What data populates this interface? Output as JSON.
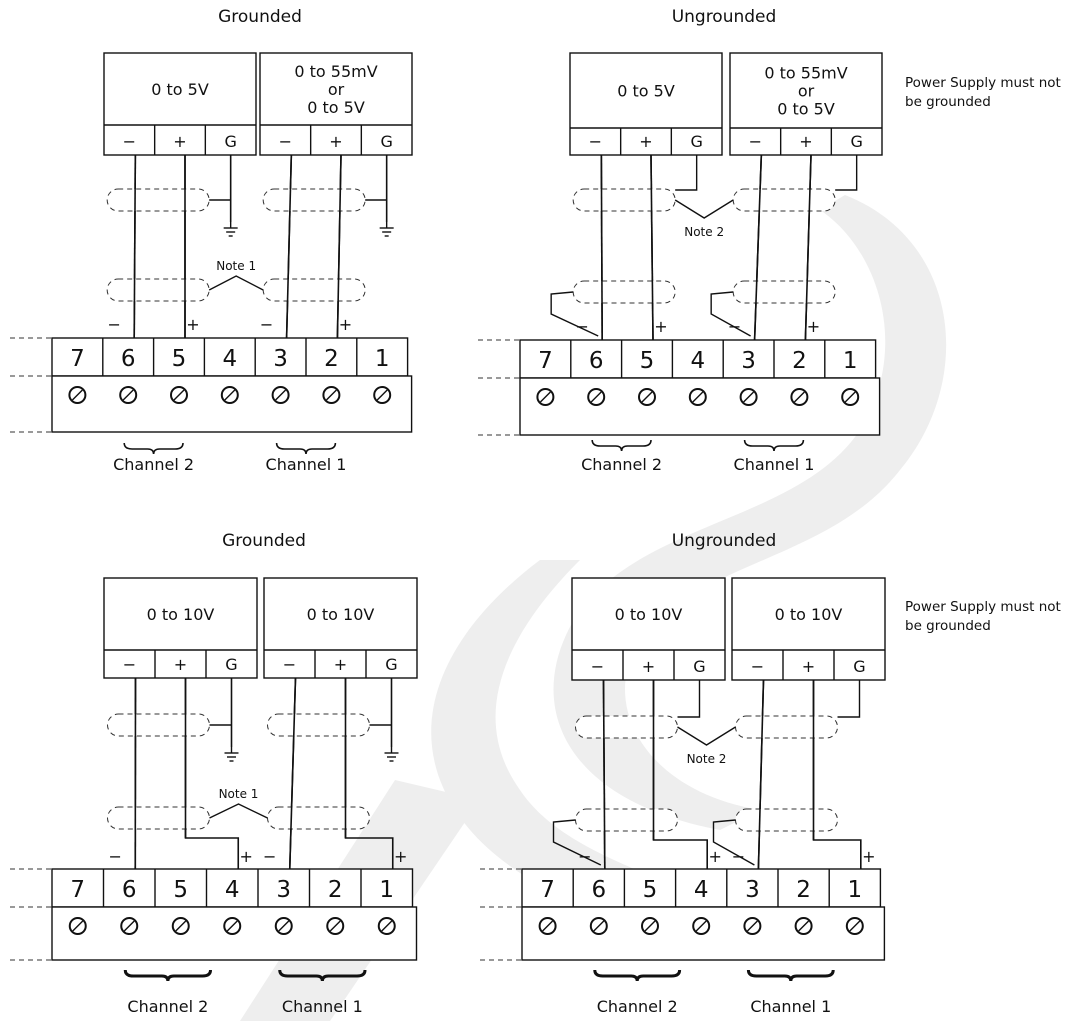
{
  "colors": {
    "ink": "#111111",
    "watermark": "#eeeeee"
  },
  "diagrams": [
    {
      "title": "Grounded",
      "left_box": [
        "0 to 5V"
      ],
      "right_box": [
        "0 to 55mV",
        "or",
        "0 to 5V"
      ],
      "box_terms": [
        "−",
        "+",
        "G"
      ],
      "note": "Note 1",
      "polarity": [
        "−",
        "+",
        "−",
        "+"
      ],
      "terminals": [
        "7",
        "6",
        "5",
        "4",
        "3",
        "2",
        "1"
      ],
      "channels": [
        "Channel 2",
        "Channel 1"
      ]
    },
    {
      "title": "Ungrounded",
      "left_box": [
        "0 to 5V"
      ],
      "right_box": [
        "0 to 55mV",
        "or",
        "0 to 5V"
      ],
      "box_terms": [
        "−",
        "+",
        "G"
      ],
      "note": "Note 2",
      "polarity": [
        "−",
        "+",
        "−",
        "+"
      ],
      "terminals": [
        "7",
        "6",
        "5",
        "4",
        "3",
        "2",
        "1"
      ],
      "channels": [
        "Channel 2",
        "Channel 1"
      ],
      "side_note": [
        "Power Supply must not",
        "be grounded"
      ]
    },
    {
      "title": "Grounded",
      "left_box": [
        "0 to 10V"
      ],
      "right_box": [
        "0 to 10V"
      ],
      "box_terms": [
        "−",
        "+",
        "G"
      ],
      "note": "Note 1",
      "polarity": [
        "−",
        "+",
        "−",
        "+"
      ],
      "terminals": [
        "7",
        "6",
        "5",
        "4",
        "3",
        "2",
        "1"
      ],
      "channels": [
        "Channel 2",
        "Channel 1"
      ]
    },
    {
      "title": "Ungrounded",
      "left_box": [
        "0 to 10V"
      ],
      "right_box": [
        "0 to 10V"
      ],
      "box_terms": [
        "−",
        "+",
        "G"
      ],
      "note": "Note 2",
      "polarity": [
        "−",
        "+",
        "−",
        "+"
      ],
      "terminals": [
        "7",
        "6",
        "5",
        "4",
        "3",
        "2",
        "1"
      ],
      "channels": [
        "Channel 2",
        "Channel 1"
      ],
      "side_note": [
        "Power Supply must not",
        "be grounded"
      ]
    }
  ]
}
